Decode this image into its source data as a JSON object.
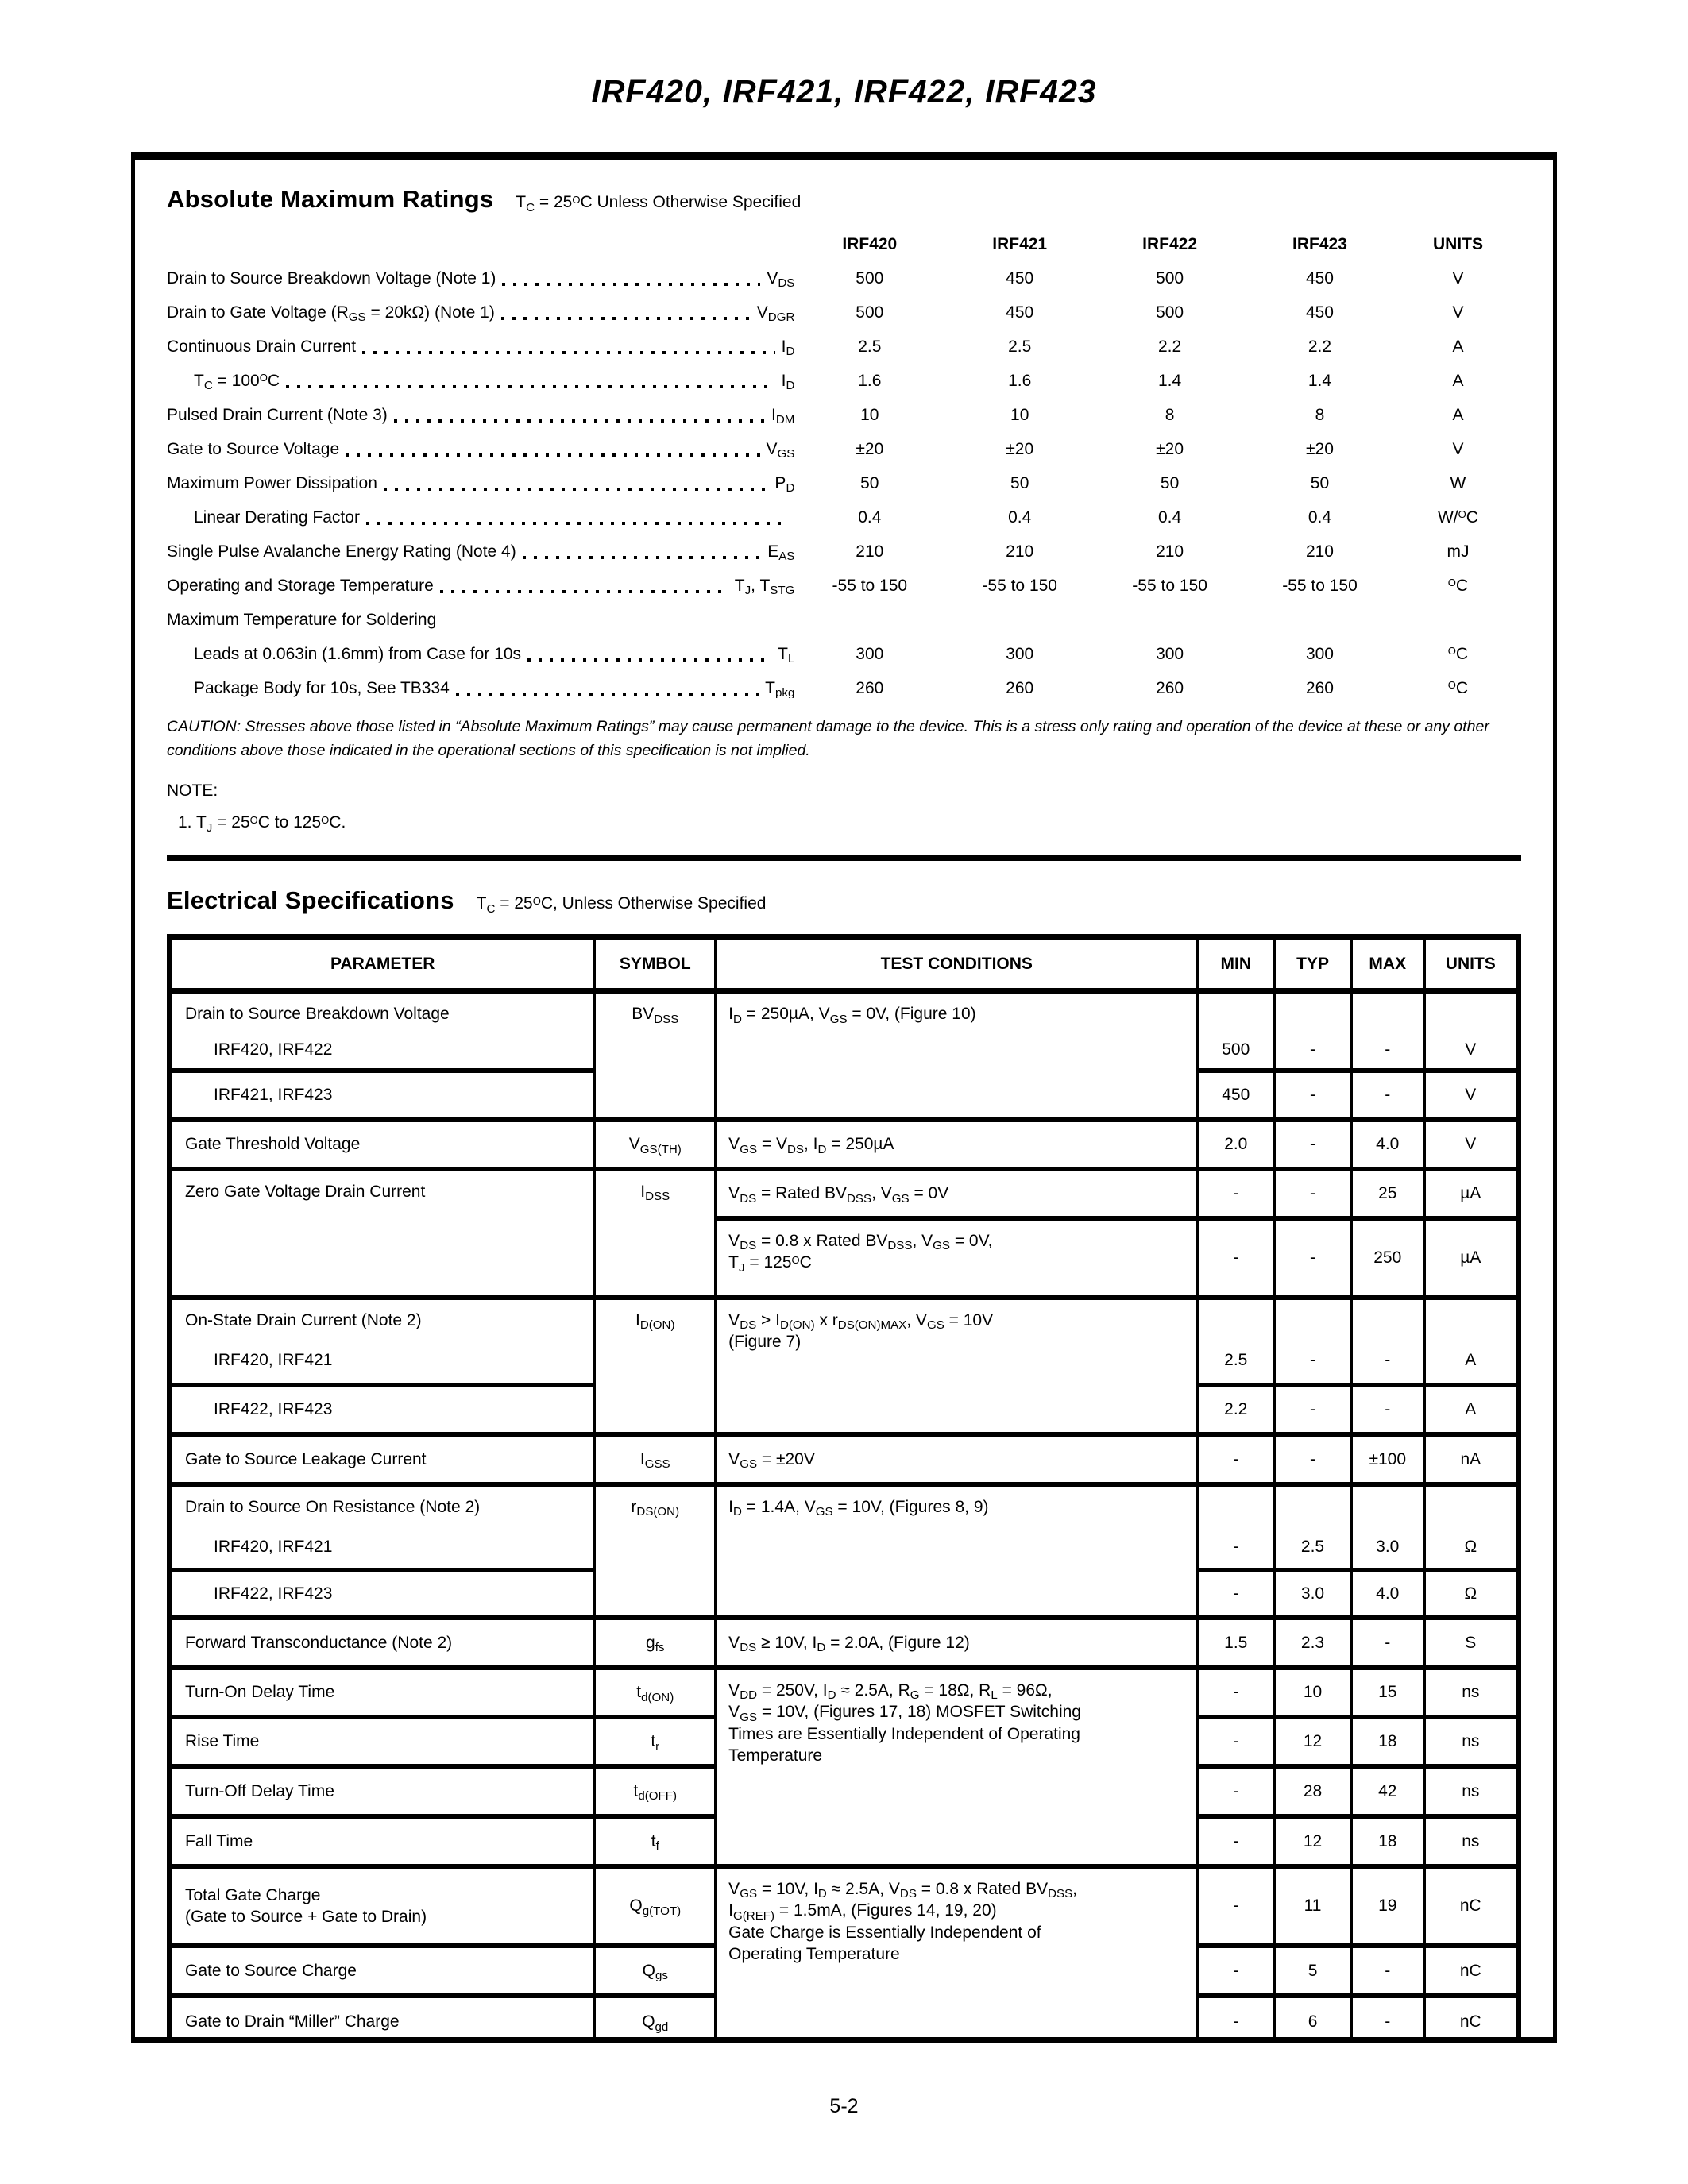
{
  "page": {
    "title": "IRF420, IRF421, IRF422, IRF423",
    "page_number": "5-2"
  },
  "amr": {
    "heading": "Absolute Maximum Ratings",
    "condition_note": "T~C~ = 25^O^C Unless Otherwise Specified",
    "columns": [
      "IRF420",
      "IRF421",
      "IRF422",
      "IRF423",
      "UNITS"
    ],
    "rows": [
      {
        "label": "Drain to Source Breakdown Voltage (Note 1)",
        "symbol": "V~DS~",
        "v": [
          "500",
          "450",
          "500",
          "450"
        ],
        "unit": "V"
      },
      {
        "label": "Drain to Gate Voltage (R~GS~ = 20kΩ) (Note 1)",
        "symbol": "V~DGR~",
        "v": [
          "500",
          "450",
          "500",
          "450"
        ],
        "unit": "V"
      },
      {
        "label": "Continuous Drain Current",
        "symbol": "I~D~",
        "v": [
          "2.5",
          "2.5",
          "2.2",
          "2.2"
        ],
        "unit": "A"
      },
      {
        "label": "T~C~ = 100^O^C",
        "symbol": "I~D~",
        "v": [
          "1.6",
          "1.6",
          "1.4",
          "1.4"
        ],
        "unit": "A"
      },
      {
        "label": "Pulsed Drain Current (Note 3)",
        "symbol": "I~DM~",
        "v": [
          "10",
          "10",
          "8",
          "8"
        ],
        "unit": "A"
      },
      {
        "label": "Gate to Source Voltage",
        "symbol": "V~GS~",
        "v": [
          "±20",
          "±20",
          "±20",
          "±20"
        ],
        "unit": "V"
      },
      {
        "label": "Maximum Power Dissipation",
        "symbol": "P~D~",
        "v": [
          "50",
          "50",
          "50",
          "50"
        ],
        "unit": "W"
      },
      {
        "label": "Linear Derating Factor",
        "symbol": "",
        "v": [
          "0.4",
          "0.4",
          "0.4",
          "0.4"
        ],
        "unit": "W/^O^C"
      },
      {
        "label": "Single Pulse Avalanche Energy Rating (Note 4)",
        "symbol": "E~AS~",
        "v": [
          "210",
          "210",
          "210",
          "210"
        ],
        "unit": "mJ"
      },
      {
        "label": "Operating and Storage Temperature",
        "symbol": "T~J~, T~STG~",
        "v": [
          "-55 to 150",
          "-55 to 150",
          "-55 to 150",
          "-55 to 150"
        ],
        "unit": "^O^C"
      },
      {
        "label": "Maximum Temperature for Soldering",
        "symbol": "",
        "v": [
          "",
          "",
          "",
          ""
        ],
        "unit": ""
      },
      {
        "label": "Leads at 0.063in (1.6mm) from Case for 10s",
        "symbol": "T~L~",
        "v": [
          "300",
          "300",
          "300",
          "300"
        ],
        "unit": "^O^C"
      },
      {
        "label": "Package Body for 10s, See TB334",
        "symbol": "T~pkg~",
        "v": [
          "260",
          "260",
          "260",
          "260"
        ],
        "unit": "^O^C"
      }
    ],
    "caution": "CAUTION: Stresses above those listed in “Absolute Maximum Ratings” may cause permanent damage to the device. This is a stress only rating and operation of the device at these or any other conditions above those indicated in the operational sections of this specification is not implied.",
    "note_heading": "NOTE:",
    "note_1": "1.  T~J~ = 25^O^C to 125^O^C."
  },
  "espec": {
    "heading": "Electrical Specifications",
    "condition_note": "T~C~ = 25^O^C, Unless Otherwise Specified",
    "headers": [
      "PARAMETER",
      "SYMBOL",
      "TEST CONDITIONS",
      "MIN",
      "TYP",
      "MAX",
      "UNITS"
    ],
    "bvdss": {
      "param": "Drain to Source Breakdown Voltage",
      "symbol": "BV~DSS~",
      "cond": "I~D~ = 250µA, V~GS~ = 0V, (Figure 10)",
      "sub1": {
        "param": "IRF420, IRF422",
        "min": "500",
        "typ": "-",
        "max": "-",
        "units": "V"
      },
      "sub2": {
        "param": "IRF421, IRF423",
        "min": "450",
        "typ": "-",
        "max": "-",
        "units": "V"
      }
    },
    "vgsth": {
      "param": "Gate Threshold Voltage",
      "symbol": "V~GS(TH)~",
      "cond": "V~GS~ = V~DS~, I~D~ = 250µA",
      "min": "2.0",
      "typ": "-",
      "max": "4.0",
      "units": "V"
    },
    "idss": {
      "param": "Zero Gate Voltage Drain Current",
      "symbol": "I~DSS~",
      "r1": {
        "cond": "V~DS~ = Rated BV~DSS~, V~GS~ = 0V",
        "min": "-",
        "typ": "-",
        "max": "25",
        "units": "µA"
      },
      "r2": {
        "cond": "V~DS~ = 0.8 x Rated BV~DSS~, V~GS~ = 0V,\nT~J~ = 125^O^C",
        "min": "-",
        "typ": "-",
        "max": "250",
        "units": "µA"
      }
    },
    "idon": {
      "param": "On-State Drain Current (Note 2)",
      "symbol": "I~D(ON)~",
      "cond": "V~DS~ > I~D(ON)~ x r~DS(ON)MAX~, V~GS~ = 10V\n(Figure 7)",
      "sub1": {
        "param": "IRF420, IRF421",
        "min": "2.5",
        "typ": "-",
        "max": "-",
        "units": "A"
      },
      "sub2": {
        "param": "IRF422, IRF423",
        "min": "2.2",
        "typ": "-",
        "max": "-",
        "units": "A"
      }
    },
    "igss": {
      "param": "Gate to Source Leakage Current",
      "symbol": "I~GSS~",
      "cond": "V~GS~ = ±20V",
      "min": "-",
      "typ": "-",
      "max": "±100",
      "units": "nA"
    },
    "rdson": {
      "param": "Drain to Source On Resistance (Note 2)",
      "symbol": "r~DS(ON)~",
      "cond": "I~D~ = 1.4A, V~GS~ = 10V, (Figures 8, 9)",
      "sub1": {
        "param": "IRF420, IRF421",
        "min": "-",
        "typ": "2.5",
        "max": "3.0",
        "units": "Ω"
      },
      "sub2": {
        "param": "IRF422, IRF423",
        "min": "-",
        "typ": "3.0",
        "max": "4.0",
        "units": "Ω"
      }
    },
    "gfs": {
      "param": "Forward Transconductance (Note 2)",
      "symbol": "g~fs~",
      "cond": "V~DS~ ≥ 10V, I~D~ = 2.0A, (Figure 12)",
      "min": "1.5",
      "typ": "2.3",
      "max": "-",
      "units": "S"
    },
    "switching": {
      "cond": "V~DD~ = 250V, I~D~ ≈ 2.5A, R~G~ = 18Ω, R~L~ = 96Ω,\nV~GS~ = 10V, (Figures 17, 18) MOSFET Switching\nTimes are Essentially Independent of Operating\nTemperature",
      "rows": [
        {
          "param": "Turn-On Delay Time",
          "symbol": "t~d(ON)~",
          "min": "-",
          "typ": "10",
          "max": "15",
          "units": "ns"
        },
        {
          "param": "Rise Time",
          "symbol": "t~r~",
          "min": "-",
          "typ": "12",
          "max": "18",
          "units": "ns"
        },
        {
          "param": "Turn-Off Delay Time",
          "symbol": "t~d(OFF)~",
          "min": "-",
          "typ": "28",
          "max": "42",
          "units": "ns"
        },
        {
          "param": "Fall Time",
          "symbol": "t~f~",
          "min": "-",
          "typ": "12",
          "max": "18",
          "units": "ns"
        }
      ]
    },
    "charge": {
      "cond": "V~GS~ = 10V, I~D~ ≈ 2.5A, V~DS~ = 0.8 x Rated BV~DSS~,\nI~G(REF)~ = 1.5mA, (Figures 14, 19, 20)\nGate Charge is Essentially Independent of\nOperating Temperature",
      "rows": [
        {
          "param": "Total Gate Charge\n(Gate to Source + Gate to Drain)",
          "symbol": "Q~g(TOT)~",
          "min": "-",
          "typ": "11",
          "max": "19",
          "units": "nC"
        },
        {
          "param": "Gate to Source Charge",
          "symbol": "Q~gs~",
          "min": "-",
          "typ": "5",
          "max": "-",
          "units": "nC"
        },
        {
          "param": "Gate to Drain “Miller” Charge",
          "symbol": "Q~gd~",
          "min": "-",
          "typ": "6",
          "max": "-",
          "units": "nC"
        }
      ]
    }
  }
}
